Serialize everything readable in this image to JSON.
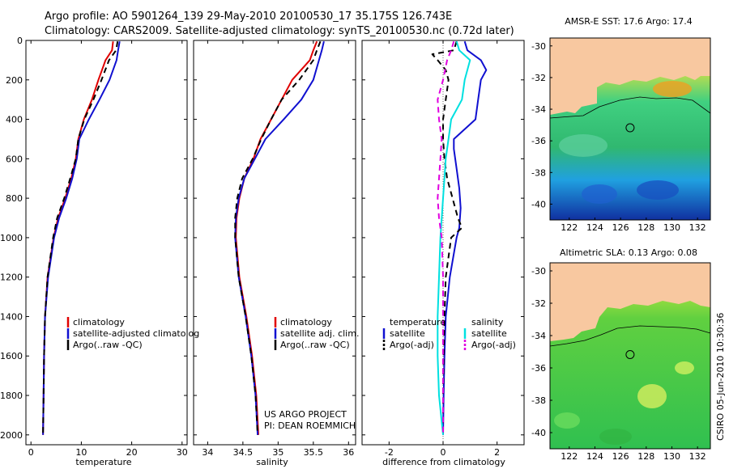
{
  "header": {
    "line1": "Argo profile: AO 5901264_139 29-May-2010 20100530_17 35.175S 126.743E",
    "line2": "Climatology: CARS2009. Satellite-adjusted climatology: synTS_20100530.nc (0.72d later)"
  },
  "side_label": "CSIRO 05-Jun-2010 10:30:36",
  "colors": {
    "climatology": "#e00000",
    "satellite": "#1010d0",
    "argo": "#000000",
    "sal_satellite": "#00e0e0",
    "sal_argo": "#e000e0",
    "land": "#f8c8a0"
  },
  "chart_data": [
    {
      "type": "line",
      "panel": "temperature",
      "xlabel": "temperature",
      "ylabel": "",
      "xlim": [
        -1,
        31
      ],
      "ylim": [
        2050,
        0
      ],
      "x_ticks": [
        0,
        10,
        20,
        30
      ],
      "y_ticks": [
        0,
        200,
        400,
        600,
        800,
        1000,
        1200,
        1400,
        1600,
        1800,
        2000
      ],
      "legend": [
        "climatology",
        "satellite-adjusted climatolog",
        "Argo(..raw -QC)"
      ],
      "series": [
        {
          "name": "climatology",
          "color": "climatology",
          "dash": "solid",
          "depth": [
            5,
            50,
            100,
            200,
            300,
            400,
            500,
            600,
            700,
            800,
            900,
            1000,
            1200,
            1400,
            1600,
            1800,
            2000
          ],
          "values": [
            16.3,
            16.1,
            14.8,
            13.4,
            12.1,
            10.5,
            9.4,
            8.9,
            8.0,
            6.8,
            5.4,
            4.5,
            3.3,
            2.8,
            2.6,
            2.5,
            2.4
          ]
        },
        {
          "name": "satellite-adjusted climatolog",
          "color": "satellite",
          "dash": "solid",
          "depth": [
            5,
            50,
            100,
            200,
            300,
            400,
            500,
            600,
            700,
            800,
            900,
            1000,
            1200,
            1400,
            1600,
            1800,
            2000
          ],
          "values": [
            17.6,
            17.3,
            17.0,
            15.6,
            13.6,
            11.5,
            9.6,
            9.1,
            8.2,
            7.0,
            5.6,
            4.6,
            3.4,
            2.8,
            2.6,
            2.5,
            2.4
          ]
        },
        {
          "name": "Argo(..raw -QC)",
          "color": "argo",
          "dash": "dashed",
          "depth": [
            5,
            50,
            100,
            200,
            300,
            400,
            500,
            600,
            700,
            800,
            900,
            1000,
            1200,
            1400,
            1600,
            1800,
            2000
          ],
          "values": [
            17.2,
            16.9,
            15.5,
            14.0,
            12.4,
            10.6,
            9.4,
            8.9,
            7.8,
            6.6,
            5.2,
            4.4,
            3.3,
            2.8,
            2.6,
            2.5,
            2.4
          ]
        }
      ]
    },
    {
      "type": "line",
      "panel": "salinity",
      "xlabel": "salinity",
      "ylabel": "",
      "xlim": [
        33.8,
        36.1
      ],
      "ylim": [
        2050,
        0
      ],
      "x_ticks": [
        34,
        34.5,
        35,
        35.5,
        36
      ],
      "legend": [
        "climatology",
        "satellite adj. clim.",
        "Argo(..raw -QC)"
      ],
      "series": [
        {
          "name": "climatology",
          "color": "climatology",
          "dash": "solid",
          "depth": [
            5,
            50,
            100,
            200,
            300,
            400,
            500,
            600,
            700,
            800,
            900,
            1000,
            1200,
            1400,
            1600,
            1800,
            2000
          ],
          "values": [
            35.55,
            35.5,
            35.45,
            35.2,
            35.05,
            34.9,
            34.75,
            34.65,
            34.52,
            34.45,
            34.41,
            34.4,
            34.45,
            34.55,
            34.63,
            34.69,
            34.72
          ]
        },
        {
          "name": "satellite adj. clim.",
          "color": "satellite",
          "dash": "solid",
          "depth": [
            5,
            50,
            100,
            200,
            300,
            400,
            500,
            600,
            700,
            800,
            900,
            1000,
            1200,
            1400,
            1600,
            1800,
            2000
          ],
          "values": [
            35.65,
            35.62,
            35.58,
            35.5,
            35.33,
            35.08,
            34.82,
            34.67,
            34.52,
            34.44,
            34.4,
            34.39,
            34.44,
            34.54,
            34.62,
            34.68,
            34.71
          ]
        },
        {
          "name": "Argo(..raw -QC)",
          "color": "argo",
          "dash": "dashed",
          "depth": [
            5,
            50,
            100,
            200,
            300,
            400,
            500,
            600,
            700,
            800,
            900,
            1000,
            1200,
            1400,
            1600,
            1800,
            2000
          ],
          "values": [
            35.6,
            35.55,
            35.5,
            35.3,
            35.05,
            34.9,
            34.76,
            34.64,
            34.49,
            34.42,
            34.39,
            34.39,
            34.44,
            34.54,
            34.62,
            34.68,
            34.71
          ]
        }
      ],
      "annotation": [
        "US ARGO PROJECT",
        "PI: DEAN ROEMMICH"
      ]
    },
    {
      "type": "line",
      "panel": "difference",
      "xlabel": "difference from climatology",
      "ylabel": "",
      "xlim": [
        -3,
        3
      ],
      "ylim": [
        2050,
        0
      ],
      "x_ticks": [
        -2,
        0,
        2
      ],
      "legend": [
        "temperature",
        "satellite",
        "Argo(-adj)",
        "salinity",
        "satellite",
        "Argo(-adj)"
      ],
      "series": [
        {
          "name": "temperature satellite",
          "color": "satellite",
          "dash": "solid",
          "depth": [
            5,
            50,
            100,
            150,
            200,
            300,
            400,
            500,
            550,
            650,
            750,
            850,
            950,
            1000,
            1200,
            1400,
            1600,
            1800,
            2000
          ],
          "values": [
            0.8,
            0.9,
            1.4,
            1.6,
            1.4,
            1.3,
            1.2,
            0.4,
            0.4,
            0.5,
            0.6,
            0.65,
            0.6,
            0.5,
            0.25,
            0.1,
            0.05,
            0.02,
            0.0
          ]
        },
        {
          "name": "temperature Argo(-adj)",
          "color": "argo",
          "dash": "dashed",
          "depth": [
            5,
            50,
            70,
            100,
            150,
            200,
            300,
            400,
            500,
            600,
            700,
            800,
            900,
            950,
            1000,
            1200,
            1400,
            1600,
            1800,
            2000
          ],
          "values": [
            0.5,
            0.4,
            -0.4,
            -0.2,
            0.1,
            0.2,
            0.1,
            0.0,
            0.0,
            0.05,
            0.15,
            0.35,
            0.55,
            0.7,
            0.3,
            0.1,
            0.05,
            0.02,
            0.0,
            0.0
          ]
        },
        {
          "name": "salinity satellite",
          "color": "sal_satellite",
          "dash": "solid",
          "depth": [
            5,
            50,
            100,
            200,
            300,
            400,
            500,
            600,
            700,
            800,
            1000,
            1200,
            1400,
            1600,
            1800,
            2000
          ],
          "values": [
            0.5,
            0.6,
            1.0,
            0.8,
            0.7,
            0.3,
            0.2,
            0.1,
            0.05,
            0.0,
            -0.1,
            -0.15,
            -0.2,
            -0.2,
            -0.15,
            0.0
          ]
        },
        {
          "name": "salinity Argo(-adj)",
          "color": "sal_argo",
          "dash": "dashed",
          "depth": [
            5,
            50,
            100,
            200,
            300,
            400,
            500,
            600,
            700,
            800,
            900,
            1000,
            1200,
            1400,
            1600,
            1800,
            2000
          ],
          "values": [
            0.4,
            0.3,
            0.15,
            0.0,
            -0.2,
            -0.15,
            -0.05,
            -0.1,
            -0.15,
            -0.2,
            -0.15,
            -0.05,
            0.0,
            0.0,
            0.0,
            0.0,
            0.0
          ]
        }
      ]
    },
    {
      "type": "heatmap",
      "panel": "sst-map",
      "title": "AMSR-E SST: 17.6  Argo: 17.4",
      "xlim": [
        120.5,
        133
      ],
      "ylim": [
        -41,
        -29.5
      ],
      "x_ticks": [
        122,
        124,
        126,
        128,
        130,
        132
      ],
      "y_ticks": [
        -30,
        -32,
        -34,
        -36,
        -38,
        -40
      ],
      "marker": {
        "lon": 126.743,
        "lat": -35.175
      }
    },
    {
      "type": "heatmap",
      "panel": "sla-map",
      "title": "Altimetric SLA: 0.13  Argo: 0.08",
      "xlim": [
        120.5,
        133
      ],
      "ylim": [
        -41,
        -29.5
      ],
      "x_ticks": [
        122,
        124,
        126,
        128,
        130,
        132
      ],
      "y_ticks": [
        -30,
        -32,
        -34,
        -36,
        -38,
        -40
      ],
      "marker": {
        "lon": 126.743,
        "lat": -35.175
      }
    }
  ]
}
